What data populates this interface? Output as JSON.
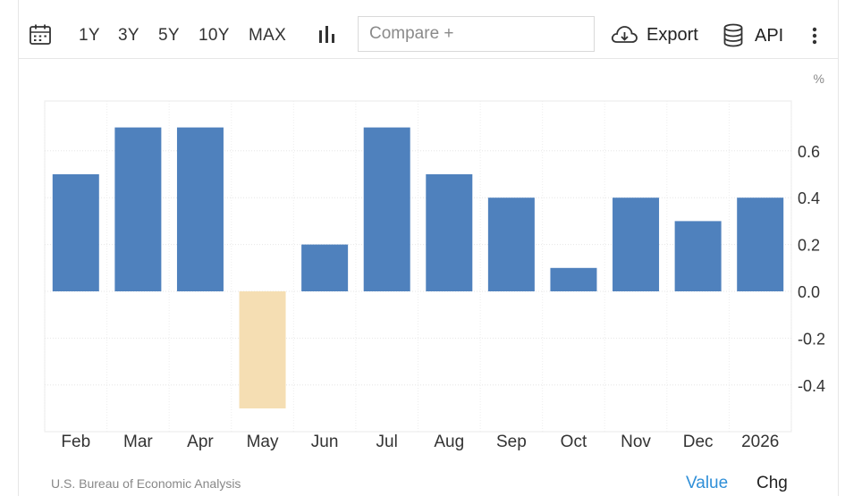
{
  "toolbar": {
    "ranges": [
      "1Y",
      "3Y",
      "5Y",
      "10Y",
      "MAX"
    ],
    "compare_placeholder": "Compare +",
    "export_label": "Export",
    "api_label": "API"
  },
  "footer": {
    "source": "U.S. Bureau of Economic Analysis",
    "value_label": "Value",
    "chg_label": "Chg"
  },
  "colors": {
    "positive": "#4f81bd",
    "negative": "#f5deb3",
    "value_active": "#2f8fd8"
  },
  "chart_data": {
    "type": "bar",
    "unit": "%",
    "categories": [
      "Feb",
      "Mar",
      "Apr",
      "May",
      "Jun",
      "Jul",
      "Aug",
      "Sep",
      "Oct",
      "Nov",
      "Dec",
      "2026"
    ],
    "values": [
      0.5,
      0.7,
      0.7,
      -0.5,
      0.2,
      0.7,
      0.5,
      0.4,
      0.1,
      0.4,
      0.3,
      0.4
    ],
    "yticks": [
      -0.4,
      -0.2,
      0.0,
      0.2,
      0.4,
      0.6
    ],
    "ylim": [
      -0.6,
      0.8
    ],
    "grid": true,
    "y_axis_side": "right"
  }
}
